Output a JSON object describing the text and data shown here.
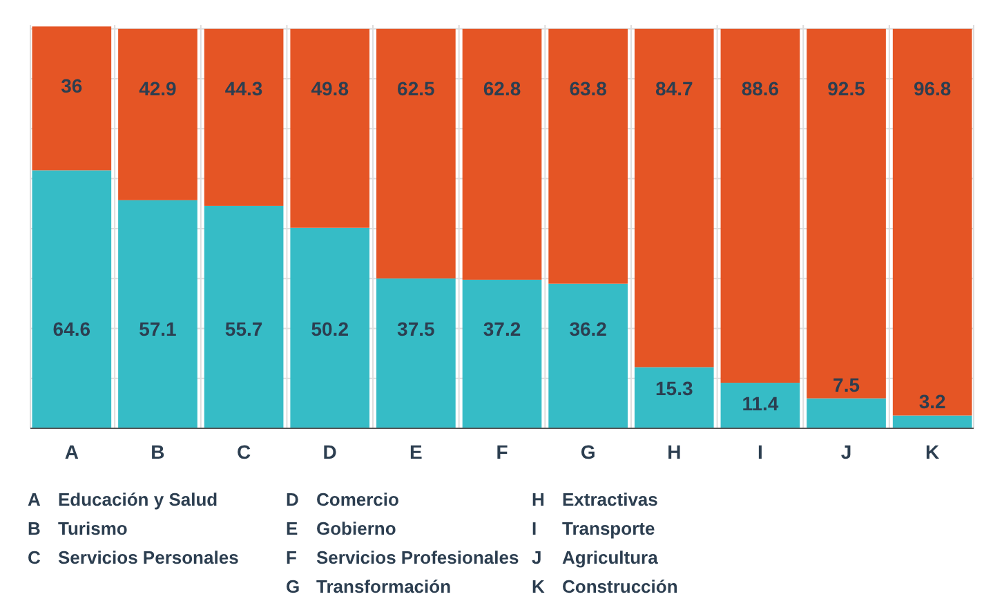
{
  "chart_data": {
    "type": "bar",
    "stacked": true,
    "categories": [
      "A",
      "B",
      "C",
      "D",
      "E",
      "F",
      "G",
      "H",
      "I",
      "J",
      "K"
    ],
    "series": [
      {
        "color": "#36bcc6",
        "values": [
          64.6,
          57.1,
          55.7,
          50.2,
          37.5,
          37.2,
          36.2,
          15.3,
          11.4,
          7.5,
          3.2
        ]
      },
      {
        "color": "#e55525",
        "values": [
          36,
          42.9,
          44.3,
          49.8,
          62.5,
          62.8,
          63.8,
          84.7,
          88.6,
          92.5,
          96.8
        ]
      }
    ],
    "data_labels": true,
    "ylim": [
      0,
      101
    ],
    "yticks": [
      {
        "value": 0,
        "label": null
      },
      {
        "value": 12.5,
        "label": null
      },
      {
        "value": 25,
        "label": null
      },
      {
        "value": 37.5,
        "label": null
      },
      {
        "value": 50,
        "label": null
      },
      {
        "value": 62.5,
        "label": null
      },
      {
        "value": 75,
        "label": null
      },
      {
        "value": 87.5,
        "label": null
      },
      {
        "value": 100,
        "label": null
      }
    ],
    "grid": true,
    "annotations": [
      "A Educación y Salud",
      "B Turismo",
      "C Servicios Personales",
      "D Comercio",
      "E Gobierno",
      "F Servicios Profesionales",
      "G Transformación",
      "H Extractivas",
      "I Transporte",
      "J Agricultura",
      "K Construcción"
    ]
  }
}
